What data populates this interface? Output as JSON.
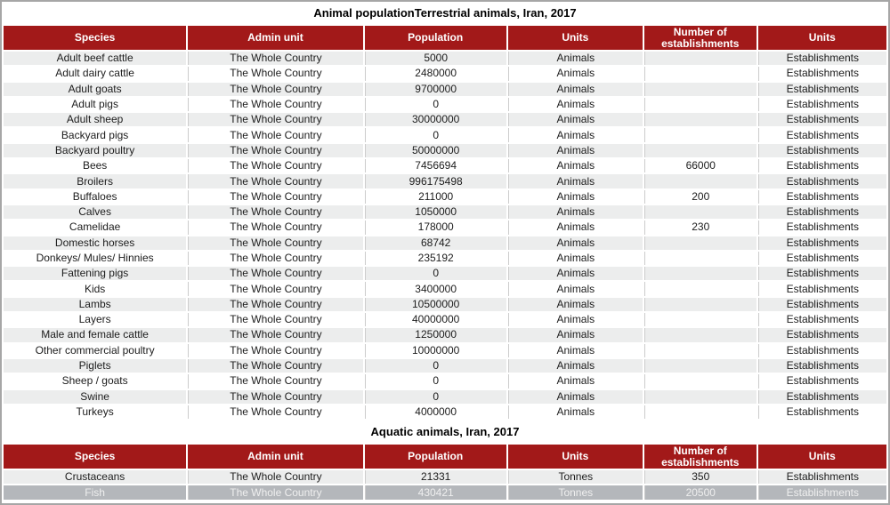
{
  "titles": {
    "prefix": "Animal population",
    "terrestrial": "Terrestrial animals, Iran, 2017",
    "aquatic": "Aquatic animals, Iran, 2017"
  },
  "columns": [
    "Species",
    "Admin unit",
    "Population",
    "Units",
    "Number of establishments",
    "Units"
  ],
  "tables": {
    "terrestrial": {
      "rows": [
        {
          "species": "Adult beef cattle",
          "admin_unit": "The Whole Country",
          "population": "5000",
          "units": "Animals",
          "establishments": "",
          "units2": "Establishments"
        },
        {
          "species": "Adult dairy cattle",
          "admin_unit": "The Whole Country",
          "population": "2480000",
          "units": "Animals",
          "establishments": "",
          "units2": "Establishments"
        },
        {
          "species": "Adult goats",
          "admin_unit": "The Whole Country",
          "population": "9700000",
          "units": "Animals",
          "establishments": "",
          "units2": "Establishments"
        },
        {
          "species": "Adult pigs",
          "admin_unit": "The Whole Country",
          "population": "0",
          "units": "Animals",
          "establishments": "",
          "units2": "Establishments"
        },
        {
          "species": "Adult sheep",
          "admin_unit": "The Whole Country",
          "population": "30000000",
          "units": "Animals",
          "establishments": "",
          "units2": "Establishments"
        },
        {
          "species": "Backyard pigs",
          "admin_unit": "The Whole Country",
          "population": "0",
          "units": "Animals",
          "establishments": "",
          "units2": "Establishments"
        },
        {
          "species": "Backyard poultry",
          "admin_unit": "The Whole Country",
          "population": "50000000",
          "units": "Animals",
          "establishments": "",
          "units2": "Establishments"
        },
        {
          "species": "Bees",
          "admin_unit": "The Whole Country",
          "population": "7456694",
          "units": "Animals",
          "establishments": "66000",
          "units2": "Establishments"
        },
        {
          "species": "Broilers",
          "admin_unit": "The Whole Country",
          "population": "996175498",
          "units": "Animals",
          "establishments": "",
          "units2": "Establishments"
        },
        {
          "species": "Buffaloes",
          "admin_unit": "The Whole Country",
          "population": "211000",
          "units": "Animals",
          "establishments": "200",
          "units2": "Establishments"
        },
        {
          "species": "Calves",
          "admin_unit": "The Whole Country",
          "population": "1050000",
          "units": "Animals",
          "establishments": "",
          "units2": "Establishments"
        },
        {
          "species": "Camelidae",
          "admin_unit": "The Whole Country",
          "population": "178000",
          "units": "Animals",
          "establishments": "230",
          "units2": "Establishments"
        },
        {
          "species": "Domestic horses",
          "admin_unit": "The Whole Country",
          "population": "68742",
          "units": "Animals",
          "establishments": "",
          "units2": "Establishments"
        },
        {
          "species": "Donkeys/ Mules/ Hinnies",
          "admin_unit": "The Whole Country",
          "population": "235192",
          "units": "Animals",
          "establishments": "",
          "units2": "Establishments"
        },
        {
          "species": "Fattening pigs",
          "admin_unit": "The Whole Country",
          "population": "0",
          "units": "Animals",
          "establishments": "",
          "units2": "Establishments"
        },
        {
          "species": "Kids",
          "admin_unit": "The Whole Country",
          "population": "3400000",
          "units": "Animals",
          "establishments": "",
          "units2": "Establishments"
        },
        {
          "species": "Lambs",
          "admin_unit": "The Whole Country",
          "population": "10500000",
          "units": "Animals",
          "establishments": "",
          "units2": "Establishments"
        },
        {
          "species": "Layers",
          "admin_unit": "The Whole Country",
          "population": "40000000",
          "units": "Animals",
          "establishments": "",
          "units2": "Establishments"
        },
        {
          "species": "Male and female cattle",
          "admin_unit": "The Whole Country",
          "population": "1250000",
          "units": "Animals",
          "establishments": "",
          "units2": "Establishments"
        },
        {
          "species": "Other commercial poultry",
          "admin_unit": "The Whole Country",
          "population": "10000000",
          "units": "Animals",
          "establishments": "",
          "units2": "Establishments"
        },
        {
          "species": "Piglets",
          "admin_unit": "The Whole Country",
          "population": "0",
          "units": "Animals",
          "establishments": "",
          "units2": "Establishments"
        },
        {
          "species": "Sheep / goats",
          "admin_unit": "The Whole Country",
          "population": "0",
          "units": "Animals",
          "establishments": "",
          "units2": "Establishments"
        },
        {
          "species": "Swine",
          "admin_unit": "The Whole Country",
          "population": "0",
          "units": "Animals",
          "establishments": "",
          "units2": "Establishments"
        },
        {
          "species": "Turkeys",
          "admin_unit": "The Whole Country",
          "population": "4000000",
          "units": "Animals",
          "establishments": "",
          "units2": "Establishments"
        }
      ]
    },
    "aquatic": {
      "rows": [
        {
          "species": "Crustaceans",
          "admin_unit": "The Whole Country",
          "population": "21331",
          "units": "Tonnes",
          "establishments": "350",
          "units2": "Establishments"
        },
        {
          "species": "Fish",
          "admin_unit": "The Whole Country",
          "population": "430421",
          "units": "Tonnes",
          "establishments": "20500",
          "units2": "Establishments",
          "selected": true
        }
      ]
    }
  },
  "colors": {
    "header_bg": "#a21919",
    "header_text": "#ffffff",
    "row_alt_bg": "#eceded",
    "selected_row_bg": "#b4b7bb",
    "selected_row_text": "#efefef",
    "cell_divider": "#cccccc",
    "outer_border": "#a6a6a6"
  }
}
